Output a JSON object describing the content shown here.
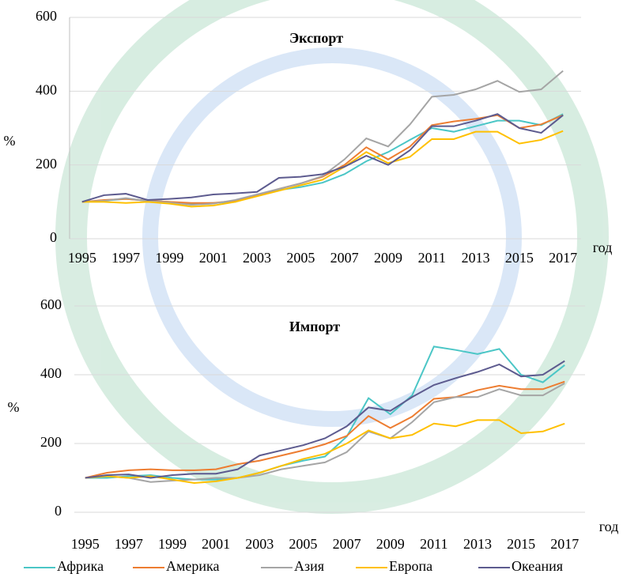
{
  "chart_data": [
    {
      "type": "line",
      "title": "Экспорт",
      "ylabel": "%",
      "xlabel": "год",
      "x": [
        1995,
        1996,
        1997,
        1998,
        1999,
        2000,
        2001,
        2002,
        2003,
        2004,
        2005,
        2006,
        2007,
        2008,
        2009,
        2010,
        2011,
        2012,
        2013,
        2014,
        2015,
        2016,
        2017
      ],
      "xlim": [
        1994.5,
        2017.5
      ],
      "xticks": [
        1995,
        1997,
        1999,
        2001,
        2003,
        2005,
        2007,
        2009,
        2011,
        2013,
        2015,
        2017
      ],
      "ylim": [
        0,
        600
      ],
      "yticks": [
        0,
        200,
        400,
        600
      ],
      "grid": true,
      "series": [
        {
          "name": "Африка",
          "color": "#4bc6c6",
          "values": [
            100,
            103,
            108,
            103,
            100,
            95,
            97,
            100,
            118,
            132,
            140,
            152,
            175,
            210,
            235,
            268,
            300,
            290,
            305,
            320,
            320,
            308,
            338
          ]
        },
        {
          "name": "Америка",
          "color": "#ed7d31",
          "values": [
            100,
            105,
            108,
            103,
            100,
            97,
            97,
            103,
            118,
            135,
            150,
            168,
            200,
            248,
            215,
            250,
            308,
            318,
            325,
            335,
            300,
            310,
            335
          ]
        },
        {
          "name": "Азия",
          "color": "#a5a5a5",
          "values": [
            100,
            103,
            110,
            102,
            98,
            92,
            95,
            105,
            120,
            135,
            150,
            170,
            215,
            272,
            250,
            310,
            385,
            390,
            405,
            428,
            398,
            405,
            455
          ]
        },
        {
          "name": "Европа",
          "color": "#ffc000",
          "values": [
            100,
            100,
            97,
            100,
            95,
            87,
            90,
            100,
            115,
            130,
            145,
            160,
            195,
            235,
            205,
            222,
            270,
            270,
            290,
            290,
            258,
            268,
            292
          ]
        },
        {
          "name": "Океания",
          "color": "#5d5b8f",
          "values": [
            100,
            118,
            122,
            105,
            108,
            112,
            120,
            123,
            127,
            165,
            168,
            175,
            195,
            225,
            200,
            240,
            305,
            305,
            320,
            338,
            300,
            287,
            335
          ]
        }
      ]
    },
    {
      "type": "line",
      "title": "Импорт",
      "ylabel": "%",
      "xlabel": "год",
      "x": [
        1995,
        1996,
        1997,
        1998,
        1999,
        2000,
        2001,
        2002,
        2003,
        2004,
        2005,
        2006,
        2007,
        2008,
        2009,
        2010,
        2011,
        2012,
        2013,
        2014,
        2015,
        2016,
        2017
      ],
      "xlim": [
        1994.5,
        2017.5
      ],
      "xticks": [
        1995,
        1997,
        1999,
        2001,
        2003,
        2005,
        2007,
        2009,
        2011,
        2013,
        2015,
        2017
      ],
      "ylim": [
        0,
        600
      ],
      "yticks": [
        0,
        200,
        400,
        600
      ],
      "grid": true,
      "legend": "bottom",
      "series": [
        {
          "name": "Африка",
          "color": "#4bc6c6",
          "values": [
            100,
            100,
            105,
            108,
            100,
            95,
            95,
            100,
            115,
            135,
            150,
            162,
            220,
            332,
            285,
            340,
            482,
            472,
            460,
            475,
            400,
            378,
            428
          ]
        },
        {
          "name": "Америка",
          "color": "#ed7d31",
          "values": [
            100,
            115,
            122,
            125,
            122,
            122,
            125,
            140,
            150,
            165,
            180,
            198,
            222,
            280,
            245,
            278,
            330,
            335,
            355,
            368,
            358,
            358,
            380
          ]
        },
        {
          "name": "Азия",
          "color": "#a5a5a5",
          "values": [
            100,
            105,
            100,
            88,
            92,
            95,
            100,
            100,
            108,
            125,
            135,
            145,
            175,
            235,
            215,
            262,
            320,
            335,
            335,
            358,
            340,
            340,
            375
          ]
        },
        {
          "name": "Европа",
          "color": "#ffc000",
          "values": [
            100,
            105,
            100,
            105,
            95,
            85,
            90,
            100,
            115,
            135,
            155,
            170,
            200,
            238,
            215,
            225,
            258,
            250,
            268,
            268,
            230,
            235,
            258
          ]
        },
        {
          "name": "Океания",
          "color": "#5d5b8f",
          "values": [
            100,
            108,
            110,
            100,
            108,
            112,
            112,
            125,
            165,
            180,
            195,
            215,
            250,
            305,
            295,
            335,
            370,
            390,
            408,
            430,
            395,
            400,
            440
          ]
        }
      ]
    }
  ]
}
